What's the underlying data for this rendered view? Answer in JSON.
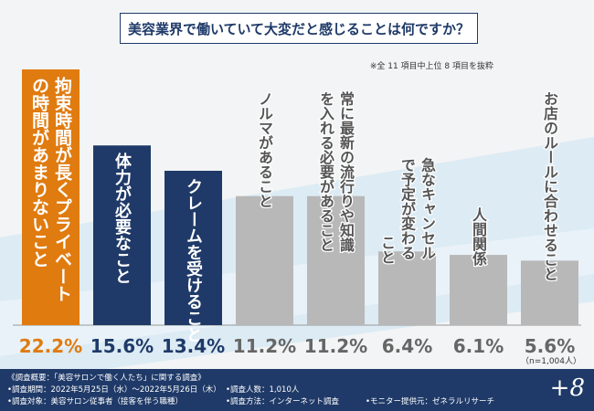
{
  "title": "美容業界で働いていて大変だと感じることは何ですか？",
  "note": "※全 11 項目中上位 8 項目を抜粋",
  "n_label": "（n=1,004人）",
  "colors": {
    "top": "#e07b10",
    "dark": "#1f3a68",
    "gray": "#b8b8b8",
    "footer": "#1f3a68"
  },
  "chart_data": {
    "type": "bar",
    "categories": [
      "拘束時間が長くプライベートの時間があまりないこと",
      "体力が必要なこと",
      "クレームを受けること",
      "ノルマがあること",
      "常に最新の流行りや知識を入れる必要があること",
      "急なキャンセルで予定が変わること",
      "人間関係",
      "お店のルールに合わせること"
    ],
    "values": [
      22.2,
      15.6,
      13.4,
      11.2,
      11.2,
      6.4,
      6.1,
      5.6
    ],
    "value_labels": [
      "22.2%",
      "15.6%",
      "13.4%",
      "11.2%",
      "11.2%",
      "6.4%",
      "6.1%",
      "5.6%"
    ],
    "ylim": [
      0,
      22.2
    ]
  },
  "footer": {
    "overview": "《調査概要：「美容サロンで働く人たち」に関する調査》",
    "period": "•調査期間：2022年5月25日（水）〜2022年5月26日（木）",
    "target": "•調査対象：美容サロン従事者（接客を伴う職種）",
    "count": "•調査人数：1,010人",
    "method": "•調査方法：インターネット調査",
    "provider": "•モニター提供元：ゼネラルリサーチ",
    "brand": "+8"
  }
}
